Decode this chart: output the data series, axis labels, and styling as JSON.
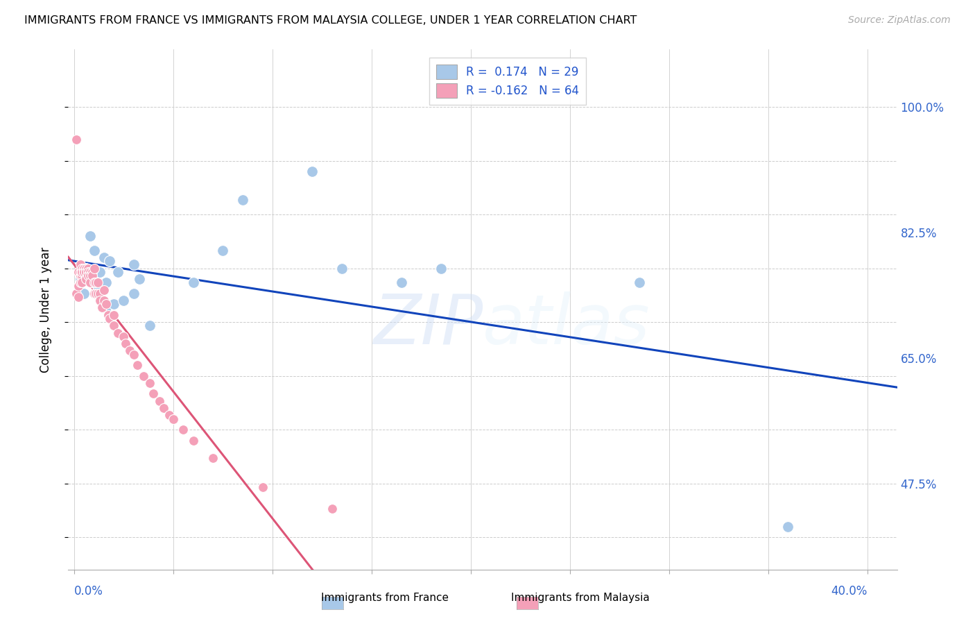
{
  "title": "IMMIGRANTS FROM FRANCE VS IMMIGRANTS FROM MALAYSIA COLLEGE, UNDER 1 YEAR CORRELATION CHART",
  "source": "Source: ZipAtlas.com",
  "ylabel": "College, Under 1 year",
  "legend_r_france": "R =  0.174",
  "legend_n_france": "N = 29",
  "legend_r_malaysia": "R = -0.162",
  "legend_n_malaysia": "N = 64",
  "color_france": "#a8c8e8",
  "color_malaysia": "#f4a0b8",
  "trend_france_color": "#1144bb",
  "trend_malaysia_color": "#dd5577",
  "watermark_text": "ZIPatlas",
  "ylim": [
    0.355,
    1.08
  ],
  "xlim": [
    -0.003,
    0.415
  ],
  "ytick_positions": [
    0.4,
    0.475,
    0.55,
    0.625,
    0.7,
    0.775,
    0.85,
    0.925,
    1.0
  ],
  "ytick_right_vals": [
    0.475,
    0.65,
    0.825,
    1.0
  ],
  "ytick_right_labels": [
    "47.5%",
    "65.0%",
    "82.5%",
    "100.0%"
  ],
  "xtick_positions": [
    0.0,
    0.05,
    0.1,
    0.15,
    0.2,
    0.25,
    0.3,
    0.35,
    0.4
  ],
  "france_x": [
    0.003,
    0.005,
    0.006,
    0.008,
    0.009,
    0.01,
    0.01,
    0.012,
    0.013,
    0.015,
    0.016,
    0.016,
    0.018,
    0.02,
    0.022,
    0.025,
    0.03,
    0.03,
    0.033,
    0.038,
    0.06,
    0.075,
    0.085,
    0.12,
    0.135,
    0.165,
    0.185,
    0.285,
    0.36
  ],
  "france_y": [
    0.76,
    0.74,
    0.775,
    0.82,
    0.77,
    0.755,
    0.8,
    0.75,
    0.77,
    0.79,
    0.755,
    0.72,
    0.785,
    0.725,
    0.77,
    0.73,
    0.74,
    0.78,
    0.76,
    0.695,
    0.755,
    0.8,
    0.87,
    0.91,
    0.775,
    0.755,
    0.775,
    0.755,
    0.415
  ],
  "malaysia_x": [
    0.001,
    0.001,
    0.002,
    0.002,
    0.002,
    0.003,
    0.003,
    0.003,
    0.003,
    0.004,
    0.004,
    0.004,
    0.004,
    0.005,
    0.005,
    0.005,
    0.005,
    0.006,
    0.006,
    0.006,
    0.006,
    0.007,
    0.007,
    0.007,
    0.008,
    0.008,
    0.008,
    0.009,
    0.009,
    0.01,
    0.01,
    0.01,
    0.011,
    0.011,
    0.012,
    0.012,
    0.013,
    0.013,
    0.014,
    0.015,
    0.015,
    0.016,
    0.017,
    0.018,
    0.02,
    0.02,
    0.022,
    0.025,
    0.026,
    0.028,
    0.03,
    0.032,
    0.035,
    0.038,
    0.04,
    0.043,
    0.045,
    0.048,
    0.05,
    0.055,
    0.06,
    0.07,
    0.095,
    0.13
  ],
  "malaysia_y": [
    0.955,
    0.74,
    0.77,
    0.75,
    0.735,
    0.78,
    0.765,
    0.77,
    0.755,
    0.775,
    0.765,
    0.755,
    0.77,
    0.775,
    0.775,
    0.77,
    0.77,
    0.775,
    0.77,
    0.77,
    0.76,
    0.775,
    0.77,
    0.765,
    0.77,
    0.765,
    0.755,
    0.77,
    0.765,
    0.775,
    0.755,
    0.74,
    0.755,
    0.74,
    0.755,
    0.74,
    0.74,
    0.73,
    0.72,
    0.745,
    0.73,
    0.725,
    0.71,
    0.705,
    0.71,
    0.695,
    0.685,
    0.68,
    0.67,
    0.66,
    0.655,
    0.64,
    0.625,
    0.615,
    0.6,
    0.59,
    0.58,
    0.57,
    0.565,
    0.55,
    0.535,
    0.51,
    0.47,
    0.44
  ]
}
